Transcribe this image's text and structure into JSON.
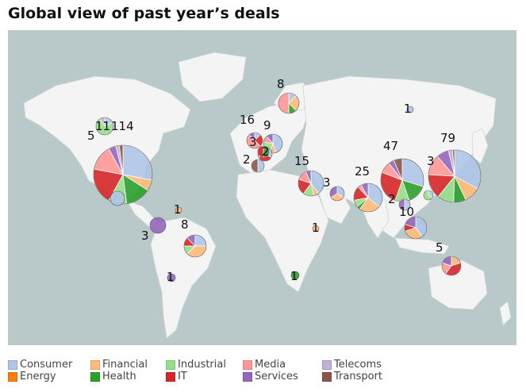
{
  "title": "Global view of past year’s deals",
  "colors": {
    "ocean": "#b9c8c9",
    "land": "#f4f4f4",
    "land_stroke": "#cfd6d6"
  },
  "categories": [
    {
      "key": "consumer",
      "label": "Consumer",
      "color": "#aec7e8"
    },
    {
      "key": "energy",
      "label": "Energy",
      "color": "#ff7f0e"
    },
    {
      "key": "financial",
      "label": "Financial",
      "color": "#ffbb78"
    },
    {
      "key": "health",
      "label": "Health",
      "color": "#2ca02c"
    },
    {
      "key": "industrial",
      "label": "Industrial",
      "color": "#98df8a"
    },
    {
      "key": "it",
      "label": "IT",
      "color": "#d62728"
    },
    {
      "key": "media",
      "label": "Media",
      "color": "#ff9896"
    },
    {
      "key": "services",
      "label": "Services",
      "color": "#9467bd"
    },
    {
      "key": "telecoms",
      "label": "Telecoms",
      "color": "#c5b0d5"
    },
    {
      "key": "transport",
      "label": "Transport",
      "color": "#8c564b"
    }
  ],
  "legend_order": [
    "consumer",
    "energy",
    "financial",
    "health",
    "industrial",
    "it",
    "media",
    "services",
    "telecoms",
    "transport"
  ],
  "deal_counts": [
    {
      "label": "114",
      "region": "usa"
    },
    {
      "label": "11",
      "region": "canada"
    },
    {
      "label": "5",
      "region": "us-northwest"
    },
    {
      "label": "1",
      "region": "caribbean"
    },
    {
      "label": "3",
      "region": "central-america"
    },
    {
      "label": "8",
      "region": "brazil"
    },
    {
      "label": "1",
      "region": "argentina"
    },
    {
      "label": "8",
      "region": "scandinavia"
    },
    {
      "label": "16",
      "region": "uk-ireland"
    },
    {
      "label": "9",
      "region": "benelux"
    },
    {
      "label": "3",
      "region": "france"
    },
    {
      "label": "2",
      "region": "switzerland"
    },
    {
      "label": "2",
      "region": "iberia"
    },
    {
      "label": "15",
      "region": "middle-east"
    },
    {
      "label": "3",
      "region": "gulf"
    },
    {
      "label": "25",
      "region": "india"
    },
    {
      "label": "47",
      "region": "china"
    },
    {
      "label": "79",
      "region": "japan-korea"
    },
    {
      "label": "3",
      "region": "korea"
    },
    {
      "label": "2",
      "region": "southeast-asia"
    },
    {
      "label": "10",
      "region": "singapore-indonesia"
    },
    {
      "label": "1",
      "region": "russia"
    },
    {
      "label": "1",
      "region": "east-africa"
    },
    {
      "label": "1",
      "region": "south-africa"
    },
    {
      "label": "5",
      "region": "australia"
    }
  ]
}
